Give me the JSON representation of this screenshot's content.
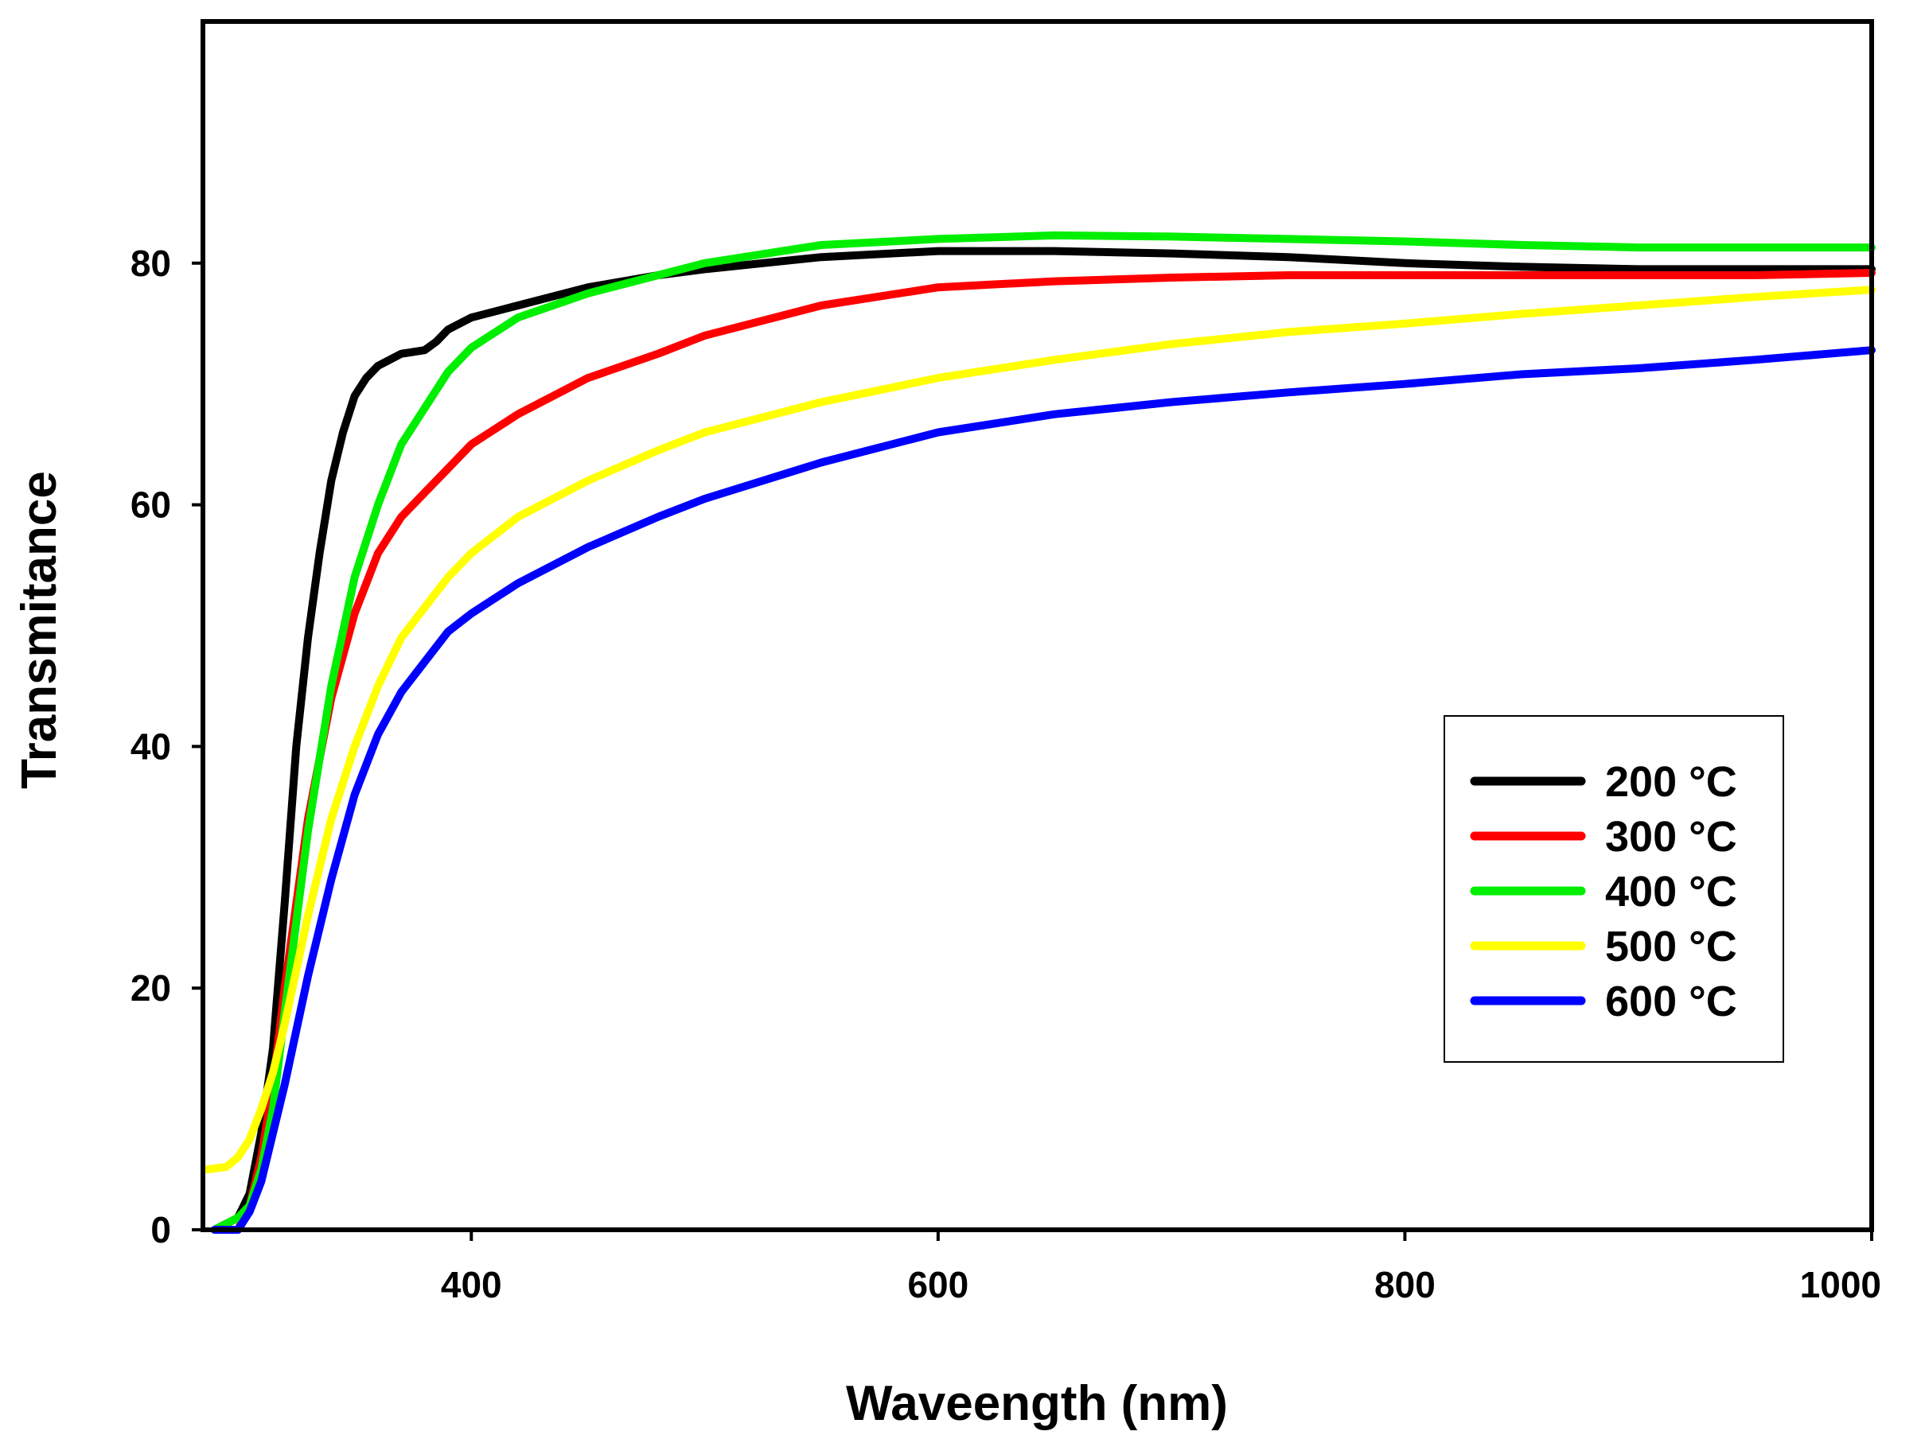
{
  "chart_data": {
    "type": "line",
    "title": "",
    "xlabel": "Waveength (nm)",
    "ylabel": "Transmitance",
    "xlim": [
      285,
      1000
    ],
    "ylim": [
      0,
      100
    ],
    "xticks": [
      400,
      600,
      800,
      1000
    ],
    "yticks": [
      0,
      20,
      40,
      60,
      80
    ],
    "grid": false,
    "legend_position": "lower-right",
    "series": [
      {
        "name": "200 °C",
        "color": "#000000",
        "x": [
          290,
          300,
          305,
          310,
          315,
          320,
          325,
          330,
          335,
          340,
          345,
          350,
          355,
          360,
          370,
          380,
          385,
          390,
          400,
          420,
          450,
          480,
          500,
          550,
          600,
          650,
          700,
          750,
          800,
          850,
          900,
          950,
          1000
        ],
        "y": [
          0,
          1,
          3,
          8,
          15,
          27,
          40,
          49,
          56,
          62,
          66,
          69,
          70.5,
          71.5,
          72.5,
          72.8,
          73.5,
          74.5,
          75.5,
          76.5,
          78,
          79,
          79.5,
          80.5,
          81,
          81,
          80.8,
          80.5,
          80,
          79.7,
          79.5,
          79.5,
          79.5
        ]
      },
      {
        "name": "300 °C",
        "color": "#ff0000",
        "x": [
          290,
          300,
          305,
          310,
          315,
          320,
          330,
          340,
          350,
          360,
          370,
          380,
          390,
          400,
          420,
          450,
          480,
          500,
          550,
          600,
          650,
          700,
          750,
          800,
          850,
          900,
          950,
          1000
        ],
        "y": [
          0,
          0,
          2,
          6,
          12,
          20,
          34,
          44,
          51,
          56,
          59,
          61,
          63,
          65,
          67.5,
          70.5,
          72.5,
          74,
          76.5,
          78,
          78.5,
          78.8,
          79,
          79,
          79,
          79,
          79,
          79.2
        ]
      },
      {
        "name": "400 °C",
        "color": "#00ee00",
        "x": [
          290,
          300,
          305,
          310,
          315,
          320,
          330,
          340,
          350,
          360,
          370,
          380,
          390,
          400,
          420,
          450,
          480,
          500,
          550,
          600,
          650,
          700,
          750,
          800,
          850,
          900,
          950,
          1000
        ],
        "y": [
          0,
          1,
          2,
          5,
          10,
          18,
          33,
          45,
          54,
          60,
          65,
          68,
          71,
          73,
          75.5,
          77.5,
          79,
          80,
          81.5,
          82,
          82.3,
          82.2,
          82,
          81.8,
          81.5,
          81.3,
          81.3,
          81.3
        ]
      },
      {
        "name": "500 °C",
        "color": "#ffff00",
        "x": [
          287,
          295,
          300,
          305,
          310,
          315,
          320,
          330,
          340,
          350,
          360,
          370,
          380,
          390,
          400,
          420,
          450,
          480,
          500,
          550,
          600,
          650,
          700,
          750,
          800,
          850,
          900,
          950,
          1000
        ],
        "y": [
          5,
          5.2,
          6,
          7.5,
          10,
          13,
          17,
          26,
          34,
          40,
          45,
          49,
          51.5,
          54,
          56,
          59,
          62,
          64.5,
          66,
          68.5,
          70.5,
          72,
          73.3,
          74.3,
          75,
          75.8,
          76.5,
          77.2,
          77.8
        ]
      },
      {
        "name": "600 °C",
        "color": "#0000ff",
        "x": [
          290,
          300,
          305,
          310,
          315,
          320,
          330,
          340,
          350,
          360,
          370,
          380,
          390,
          400,
          420,
          450,
          480,
          500,
          550,
          600,
          650,
          700,
          750,
          800,
          850,
          900,
          950,
          1000
        ],
        "y": [
          0,
          0,
          1.5,
          4,
          8,
          12,
          21,
          29,
          36,
          41,
          44.5,
          47,
          49.5,
          51,
          53.5,
          56.5,
          59,
          60.5,
          63.5,
          66,
          67.5,
          68.5,
          69.3,
          70,
          70.8,
          71.3,
          72,
          72.8
        ]
      }
    ]
  }
}
